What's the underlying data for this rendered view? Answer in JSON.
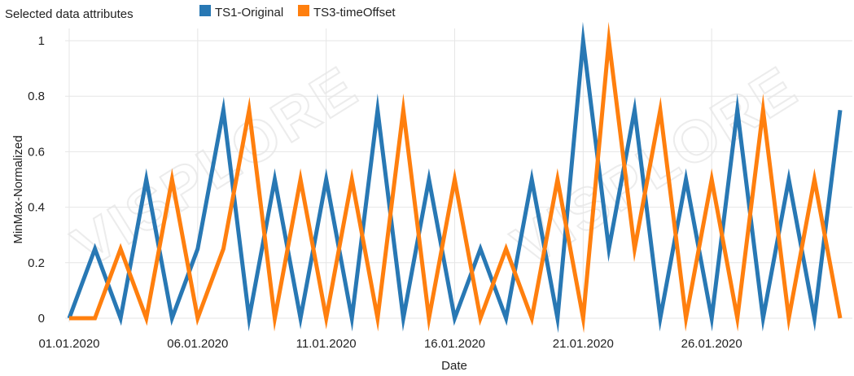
{
  "header": {
    "title": "Selected data attributes"
  },
  "watermark": "VISPLORE",
  "chart_data": {
    "type": "line",
    "xlabel": "Date",
    "ylabel": "MinMax-Normalized",
    "x": [
      "01.01.2020",
      "02.01.2020",
      "03.01.2020",
      "04.01.2020",
      "05.01.2020",
      "06.01.2020",
      "07.01.2020",
      "08.01.2020",
      "09.01.2020",
      "10.01.2020",
      "11.01.2020",
      "12.01.2020",
      "13.01.2020",
      "14.01.2020",
      "15.01.2020",
      "16.01.2020",
      "17.01.2020",
      "18.01.2020",
      "19.01.2020",
      "20.01.2020",
      "21.01.2020",
      "22.01.2020",
      "23.01.2020",
      "24.01.2020",
      "25.01.2020",
      "26.01.2020",
      "27.01.2020",
      "28.01.2020",
      "29.01.2020",
      "30.01.2020",
      "31.01.2020"
    ],
    "x_tick_labels": [
      "01.01.2020",
      "06.01.2020",
      "11.01.2020",
      "16.01.2020",
      "21.01.2020",
      "26.01.2020"
    ],
    "y_ticks": [
      0,
      0.2,
      0.4,
      0.6,
      0.8,
      1
    ],
    "ylim": [
      0,
      1
    ],
    "grid": true,
    "legend_position": "top",
    "series": [
      {
        "name": "TS1-Original",
        "color": "#2878b4",
        "values": [
          0,
          0.25,
          0,
          0.5,
          0,
          0.25,
          0.75,
          0,
          0.5,
          0,
          0.5,
          0,
          0.75,
          0,
          0.5,
          0,
          0.25,
          0,
          0.5,
          0,
          1,
          0.25,
          0.75,
          0,
          0.5,
          0,
          0.75,
          0,
          0.5,
          0,
          0.75
        ]
      },
      {
        "name": "TS3-timeOffset",
        "color": "#ff7f0e",
        "values": [
          0,
          0,
          0.25,
          0,
          0.5,
          0,
          0.25,
          0.75,
          0,
          0.5,
          0,
          0.5,
          0,
          0.75,
          0,
          0.5,
          0,
          0.25,
          0,
          0.5,
          0,
          1,
          0.25,
          0.75,
          0,
          0.5,
          0,
          0.75,
          0,
          0.5,
          0
        ]
      }
    ]
  }
}
